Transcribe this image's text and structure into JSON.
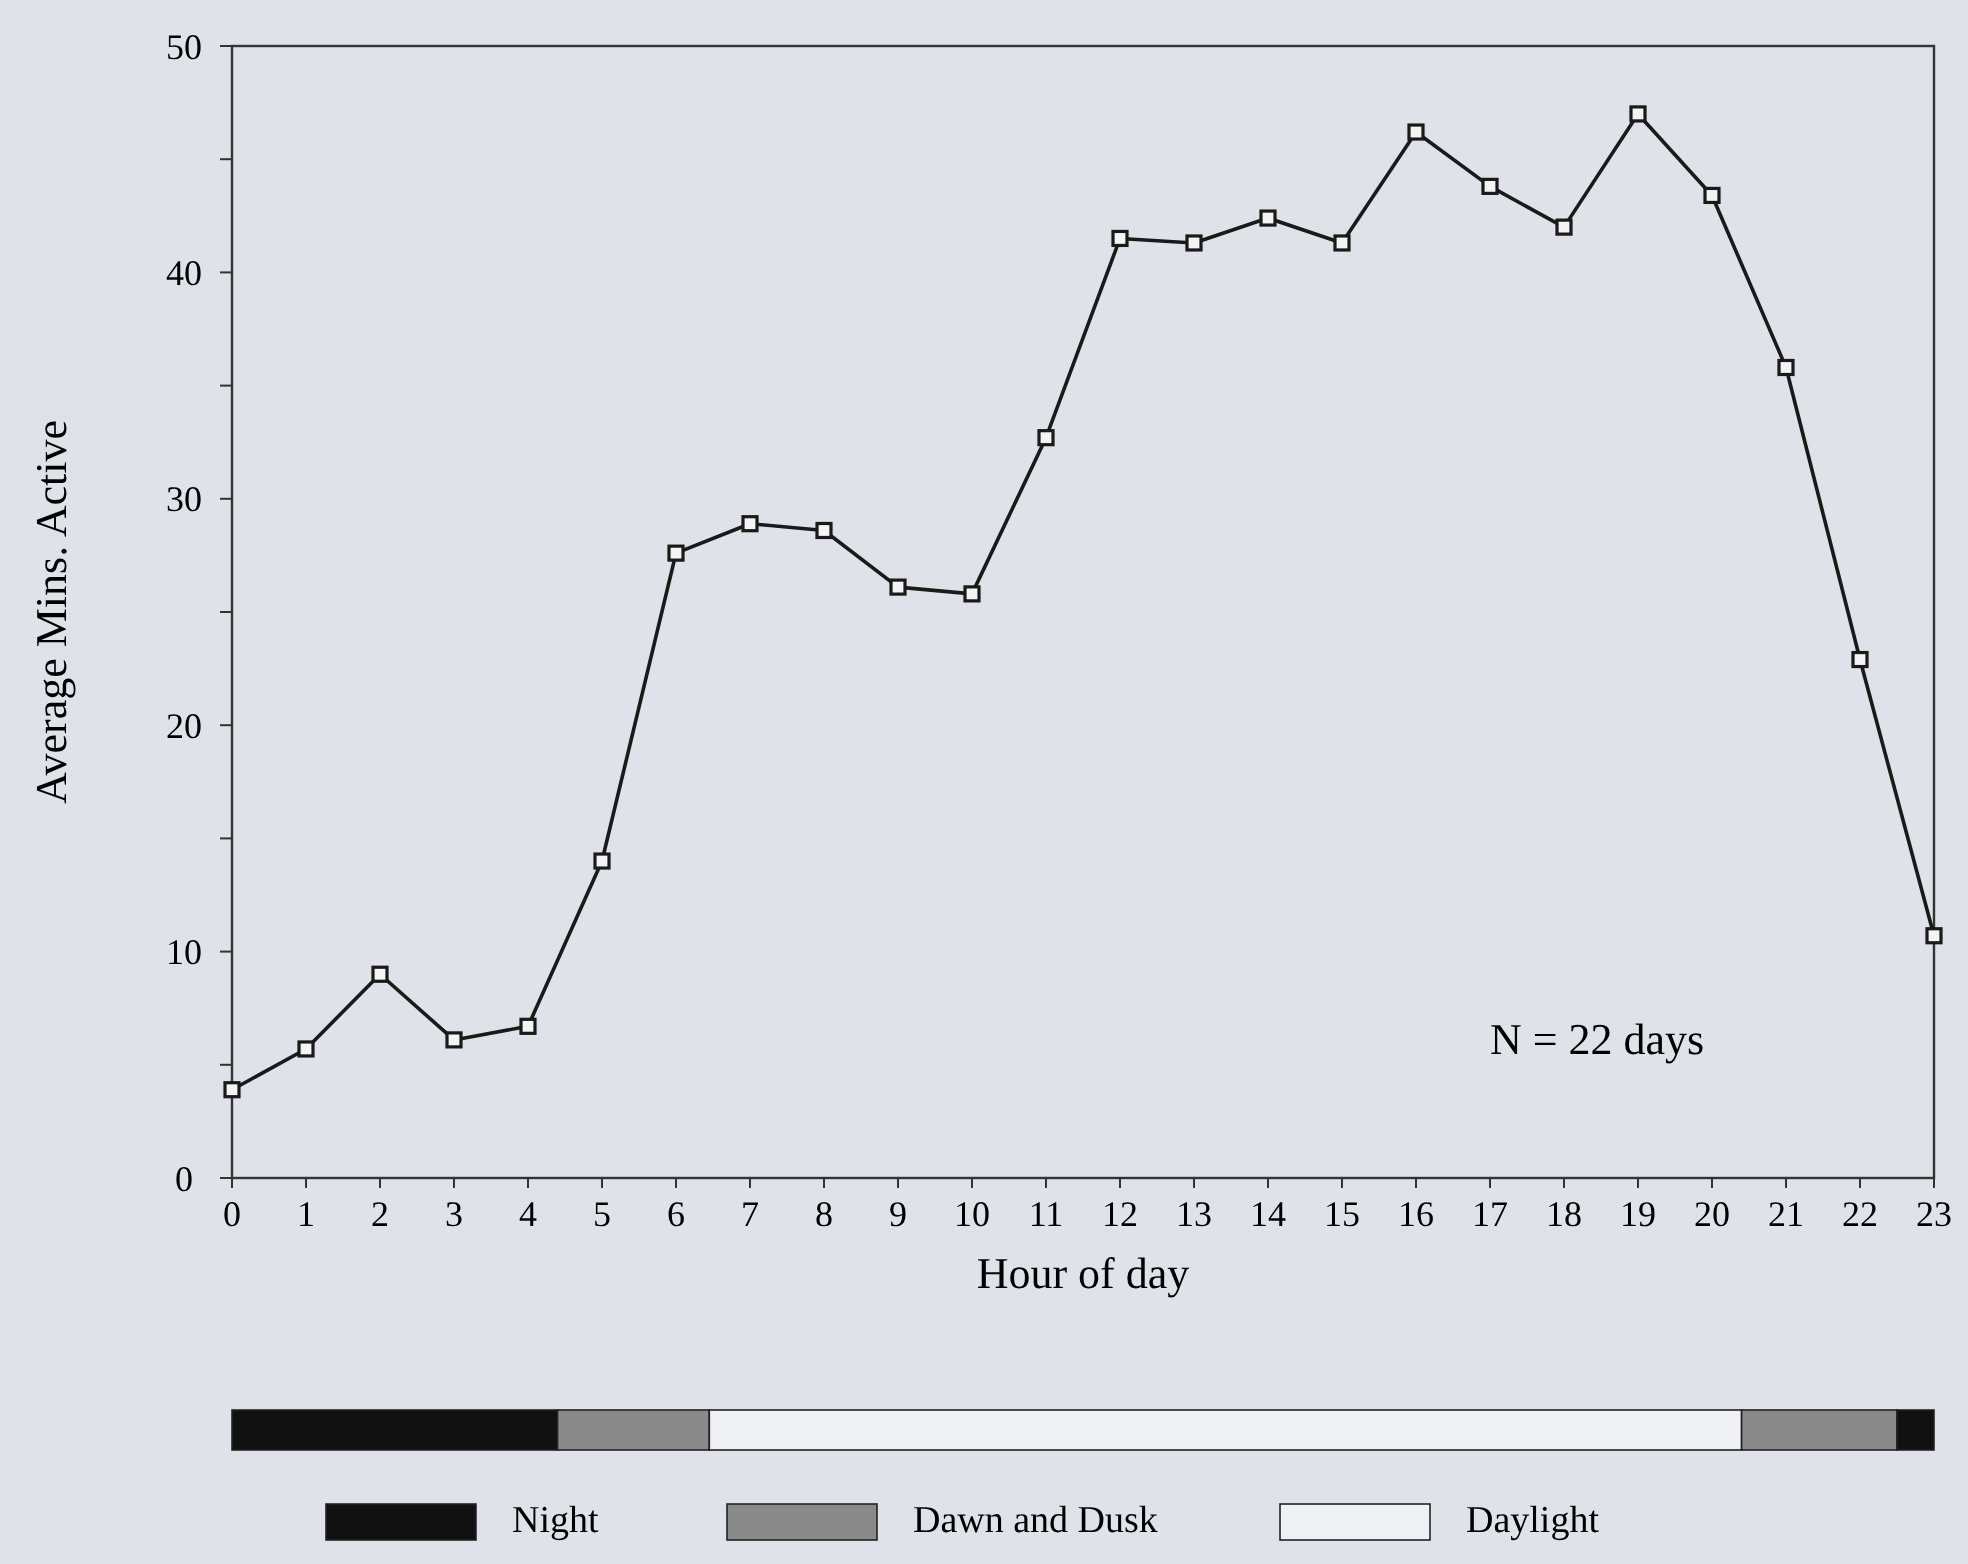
{
  "chart_data": [
    {
      "type": "line",
      "xlabel": "Hour of day",
      "ylabel": "Average Mins. Active",
      "x": [
        0,
        1,
        2,
        3,
        4,
        5,
        6,
        7,
        8,
        9,
        10,
        11,
        12,
        13,
        14,
        15,
        16,
        17,
        18,
        19,
        20,
        21,
        22,
        23
      ],
      "series": [
        {
          "color": "#1a1a1a",
          "values": [
            3.9,
            5.7,
            9.0,
            6.1,
            6.7,
            14.0,
            27.6,
            28.9,
            28.6,
            26.1,
            25.8,
            32.7,
            41.5,
            41.3,
            42.4,
            41.3,
            46.2,
            43.8,
            42.0,
            47.0,
            43.4,
            35.8,
            22.9,
            10.7
          ]
        }
      ],
      "xlim": [
        0,
        23
      ],
      "xticks": [
        0,
        1,
        2,
        3,
        4,
        5,
        6,
        7,
        8,
        9,
        10,
        11,
        12,
        13,
        14,
        15,
        16,
        17,
        18,
        19,
        20,
        21,
        22,
        23
      ],
      "ylim": [
        0,
        50
      ],
      "yticks": [
        0,
        {
          "value": 5,
          "label": null
        },
        10,
        {
          "value": 15,
          "label": null
        },
        20,
        {
          "value": 25,
          "label": null
        },
        30,
        {
          "value": 35,
          "label": null
        },
        40,
        {
          "value": 45,
          "label": null
        },
        50
      ],
      "marker": "square",
      "line_style": "solid",
      "annotations": [
        "N = 22 days"
      ]
    },
    {
      "type": "bar",
      "orientation": "horizontal",
      "stacked": true,
      "categories": [
        null
      ],
      "xlim": [
        0,
        23
      ],
      "legend": "bottom",
      "series": [
        {
          "name": "Night",
          "color": "#111111",
          "values": [
            4.4
          ]
        },
        {
          "name": "Dawn and Dusk",
          "color": "#8a8a8a",
          "values": [
            2.05
          ]
        },
        {
          "name": "Daylight",
          "color": "#eef0f3",
          "values": [
            13.95
          ]
        },
        {
          "color": "#8a8a8a",
          "values": [
            2.1
          ]
        },
        {
          "color": "#111111",
          "values": [
            0.5
          ]
        }
      ]
    }
  ]
}
